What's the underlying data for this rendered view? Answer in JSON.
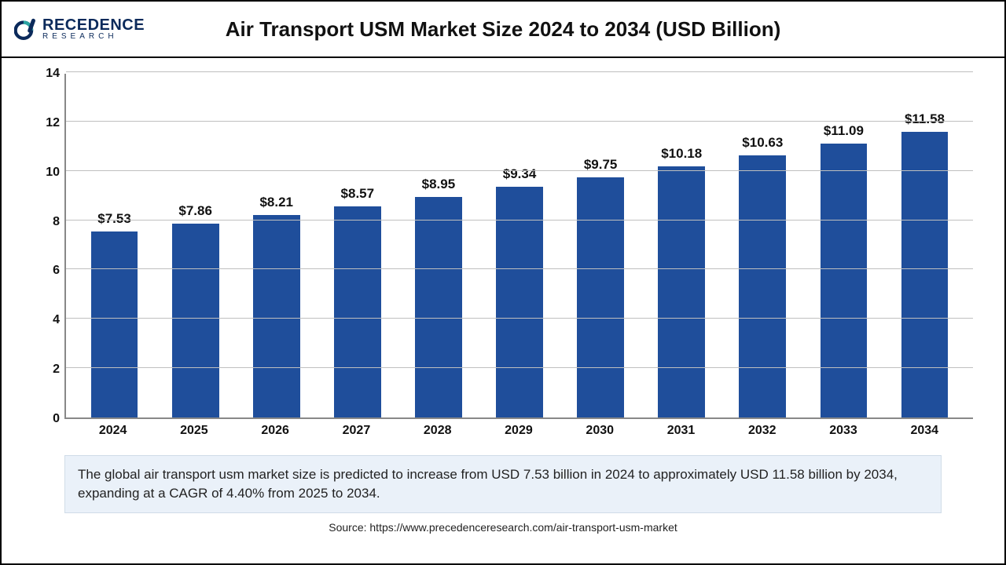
{
  "logo": {
    "brand_top": "RECEDENCE",
    "brand_sub": "RESEARCH",
    "icon_primary": "#0b2a5b",
    "icon_accent": "#2aa3a3"
  },
  "chart": {
    "type": "bar",
    "title": "Air Transport USM Market Size 2024 to 2034 (USD Billion)",
    "categories": [
      "2024",
      "2025",
      "2026",
      "2027",
      "2028",
      "2029",
      "2030",
      "2031",
      "2032",
      "2033",
      "2034"
    ],
    "values": [
      7.53,
      7.86,
      8.21,
      8.57,
      8.95,
      9.34,
      9.75,
      10.18,
      10.63,
      11.09,
      11.58
    ],
    "value_labels": [
      "$7.53",
      "$7.86",
      "$8.21",
      "$8.57",
      "$8.95",
      "$9.34",
      "$9.75",
      "$10.18",
      "$10.63",
      "$11.09",
      "$11.58"
    ],
    "bar_color": "#1f4e9b",
    "ylim": [
      0,
      14
    ],
    "ytick_step": 2,
    "yticks": [
      0,
      2,
      4,
      6,
      8,
      10,
      12,
      14
    ],
    "grid_color": "#bfbfbf",
    "axis_color": "#888888",
    "background_color": "#ffffff",
    "title_fontsize": 26,
    "label_fontsize": 17,
    "tick_fontsize": 16,
    "bar_width_ratio": 0.58
  },
  "caption": "The global air transport usm market size is predicted to increase from USD 7.53 billion in 2024 to approximately USD 11.58 billion by 2034, expanding at a CAGR of 4.40% from 2025 to 2034.",
  "caption_style": {
    "background": "#eaf1f9",
    "border": "#d0dce8",
    "fontsize": 17
  },
  "source": "Source: https://www.precedenceresearch.com/air-transport-usm-market"
}
